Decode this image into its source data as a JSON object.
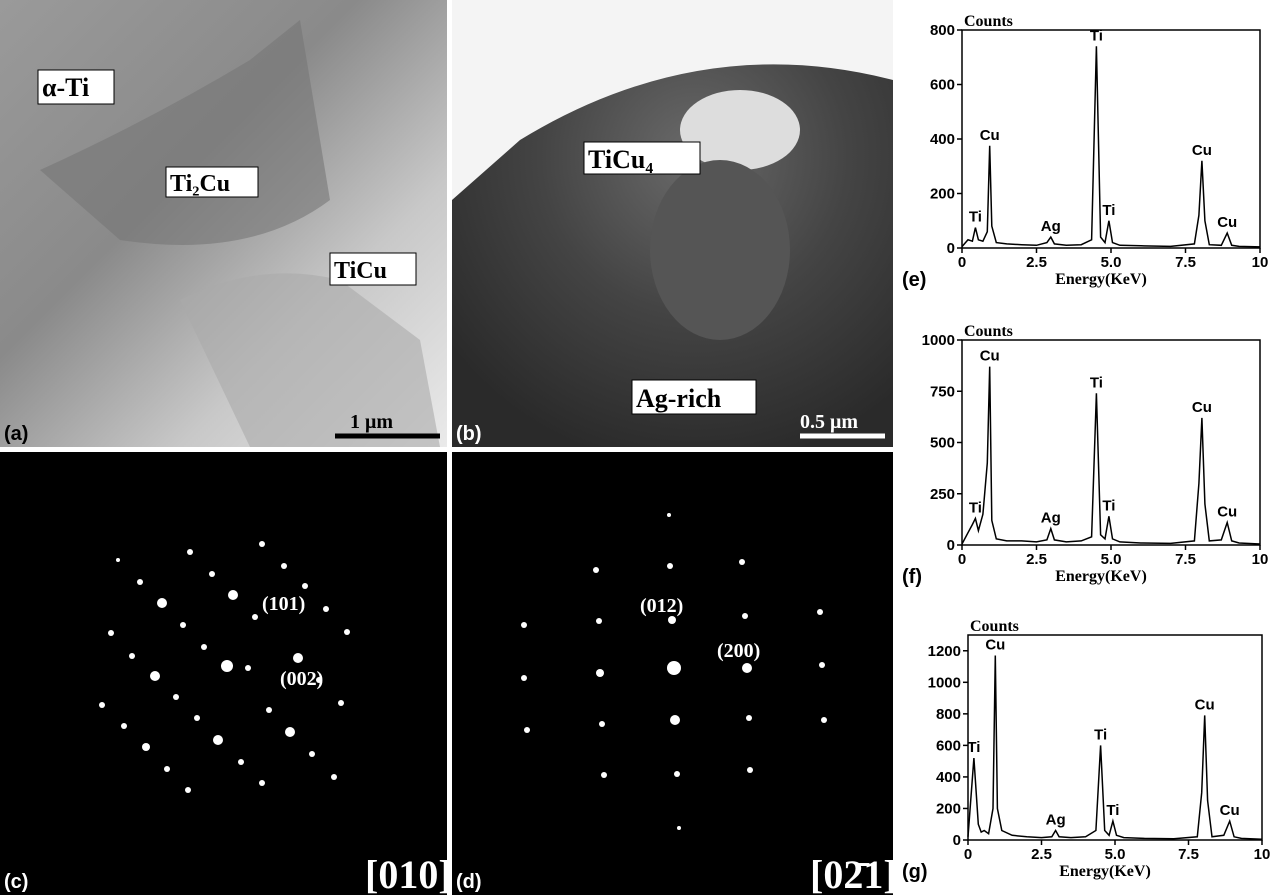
{
  "panels": [
    {
      "label": "(a)",
      "texts": [
        "α-Ti",
        "Ti₂Cu",
        "TiCu"
      ],
      "scale_bar": "1  μm"
    },
    {
      "label": "(b)",
      "texts": [
        "TiCu₄",
        "Ag-rich"
      ],
      "scale_bar": "0.5 μm"
    },
    {
      "label": "(c)",
      "texts": [
        "(101)",
        "(002)"
      ],
      "zone_axis": "[010]"
    },
    {
      "label": "(d)",
      "texts": [
        "(012)",
        "(200)"
      ],
      "zone_axis": "[02̄1]"
    }
  ],
  "chart_data": [
    {
      "type": "line",
      "panel_label": "(e)",
      "ylabel": "Counts",
      "xlabel": "Energy(KeV)",
      "color": "#000000",
      "x": [
        0,
        0.2,
        0.35,
        0.45,
        0.55,
        0.7,
        0.85,
        0.93,
        1.0,
        1.15,
        1.5,
        2.0,
        2.5,
        2.85,
        2.98,
        3.1,
        3.5,
        4.0,
        4.35,
        4.51,
        4.65,
        4.8,
        4.93,
        5.05,
        5.3,
        6.0,
        7.0,
        7.8,
        7.95,
        8.05,
        8.15,
        8.3,
        8.7,
        8.9,
        9.05,
        9.3,
        10
      ],
      "values": [
        5,
        30,
        25,
        75,
        30,
        25,
        60,
        375,
        80,
        20,
        15,
        12,
        10,
        20,
        40,
        15,
        10,
        12,
        30,
        740,
        40,
        20,
        100,
        20,
        10,
        8,
        6,
        15,
        120,
        320,
        100,
        12,
        10,
        55,
        10,
        6,
        4
      ],
      "xlim": [
        0,
        10
      ],
      "xticks": [
        0,
        2.5,
        {
          "value": 5,
          "label": "5.0"
        },
        7.5,
        10
      ],
      "ylim": [
        0,
        800
      ],
      "yticks": [
        0,
        200,
        400,
        600,
        800
      ],
      "annotations": [
        {
          "text": "Ti",
          "x": 0.45,
          "y": 75
        },
        {
          "text": "Cu",
          "x": 0.93,
          "y": 375
        },
        {
          "text": "Ag",
          "x": 2.98,
          "y": 40
        },
        {
          "text": "Ti",
          "x": 4.51,
          "y": 740
        },
        {
          "text": "Ti",
          "x": 4.93,
          "y": 100
        },
        {
          "text": "Cu",
          "x": 8.05,
          "y": 320
        },
        {
          "text": "Cu",
          "x": 8.9,
          "y": 55
        }
      ]
    },
    {
      "type": "line",
      "panel_label": "(f)",
      "ylabel": "Counts",
      "xlabel": "Energy(KeV)",
      "color": "#000000",
      "x": [
        0,
        0.2,
        0.35,
        0.45,
        0.55,
        0.7,
        0.85,
        0.93,
        1.0,
        1.15,
        1.5,
        2.0,
        2.5,
        2.85,
        2.98,
        3.1,
        3.5,
        4.0,
        4.35,
        4.51,
        4.65,
        4.8,
        4.93,
        5.05,
        5.3,
        6.0,
        7.0,
        7.8,
        7.95,
        8.05,
        8.15,
        8.3,
        8.7,
        8.9,
        9.05,
        9.3,
        10
      ],
      "values": [
        5,
        60,
        100,
        130,
        70,
        150,
        400,
        870,
        120,
        30,
        20,
        20,
        15,
        25,
        80,
        25,
        15,
        20,
        40,
        740,
        50,
        30,
        140,
        30,
        15,
        10,
        8,
        20,
        300,
        620,
        200,
        20,
        25,
        110,
        20,
        10,
        5
      ],
      "xlim": [
        0,
        10
      ],
      "xticks": [
        0,
        2.5,
        {
          "value": 5,
          "label": "5.0"
        },
        7.5,
        10
      ],
      "ylim": [
        0,
        1000
      ],
      "yticks": [
        0,
        250,
        500,
        750,
        1000
      ],
      "annotations": [
        {
          "text": "Ti",
          "x": 0.45,
          "y": 130
        },
        {
          "text": "Cu",
          "x": 0.93,
          "y": 870
        },
        {
          "text": "Ag",
          "x": 2.98,
          "y": 80
        },
        {
          "text": "Ti",
          "x": 4.51,
          "y": 740
        },
        {
          "text": "Ti",
          "x": 4.93,
          "y": 140
        },
        {
          "text": "Cu",
          "x": 8.05,
          "y": 620
        },
        {
          "text": "Cu",
          "x": 8.9,
          "y": 110
        }
      ]
    },
    {
      "type": "line",
      "panel_label": "(g)",
      "ylabel": "Counts",
      "xlabel": "Energy(KeV)",
      "color": "#000000",
      "x": [
        0,
        0.2,
        0.35,
        0.45,
        0.55,
        0.7,
        0.85,
        0.93,
        1.0,
        1.15,
        1.5,
        2.0,
        2.5,
        2.85,
        2.98,
        3.1,
        3.5,
        4.0,
        4.35,
        4.51,
        4.65,
        4.8,
        4.93,
        5.05,
        5.3,
        6.0,
        7.0,
        7.8,
        7.95,
        8.05,
        8.15,
        8.3,
        8.7,
        8.9,
        9.05,
        9.3,
        10
      ],
      "values": [
        20,
        520,
        100,
        50,
        60,
        40,
        200,
        1170,
        200,
        60,
        30,
        20,
        15,
        20,
        60,
        20,
        15,
        20,
        60,
        600,
        60,
        30,
        120,
        30,
        15,
        10,
        8,
        20,
        300,
        790,
        250,
        20,
        30,
        120,
        20,
        10,
        5
      ],
      "xlim": [
        0,
        10
      ],
      "xticks": [
        0,
        2.5,
        {
          "value": 5,
          "label": "5.0"
        },
        7.5,
        10
      ],
      "ylim": [
        0,
        1300
      ],
      "yticks": [
        0,
        200,
        400,
        600,
        800,
        1000,
        1200
      ],
      "annotations": [
        {
          "text": "Ti",
          "x": 0.2,
          "y": 520
        },
        {
          "text": "Cu",
          "x": 0.93,
          "y": 1170
        },
        {
          "text": "Ag",
          "x": 2.98,
          "y": 60
        },
        {
          "text": "Ti",
          "x": 4.51,
          "y": 600
        },
        {
          "text": "Ti",
          "x": 4.93,
          "y": 120
        },
        {
          "text": "Cu",
          "x": 8.05,
          "y": 790
        },
        {
          "text": "Cu",
          "x": 8.9,
          "y": 120
        }
      ]
    }
  ]
}
